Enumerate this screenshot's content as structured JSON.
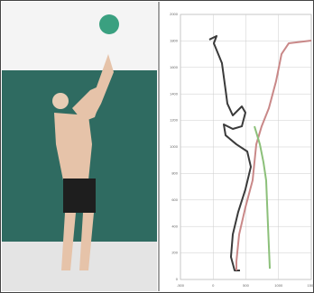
{
  "chart_data": {
    "type": "line",
    "xlim": [
      -500,
      1500
    ],
    "xticks": [
      -500,
      0,
      500,
      1000,
      1500
    ],
    "ylim": [
      0,
      2000
    ],
    "yticks": [
      0,
      200,
      400,
      600,
      800,
      1000,
      1200,
      1400,
      1600,
      1800,
      2000
    ],
    "grid": true,
    "series": [
      {
        "color": "#3a3a3a",
        "x": [
          -59,
          52,
          10,
          134,
          190,
          217,
          300,
          438,
          493,
          438,
          300,
          162,
          190,
          355,
          521,
          576,
          493,
          383,
          300,
          272,
          328,
          410
        ],
        "values": [
          1810,
          1837,
          1782,
          1633,
          1429,
          1327,
          1238,
          1306,
          1259,
          1156,
          1136,
          1170,
          1088,
          1020,
          966,
          850,
          680,
          510,
          340,
          170,
          68,
          68
        ]
      },
      {
        "color": "#c98888",
        "x": [
          1500,
          1155,
          1045,
          962,
          852,
          741,
          659,
          603,
          493,
          397,
          355,
          355
        ],
        "values": [
          1803,
          1782,
          1701,
          1497,
          1293,
          1156,
          1020,
          748,
          544,
          340,
          136,
          68
        ]
      },
      {
        "color": "#8cc07a",
        "x": [
          631,
          714,
          769,
          810,
          838,
          866
        ],
        "values": [
          1156,
          1020,
          884,
          748,
          408,
          82
        ]
      }
    ]
  }
}
